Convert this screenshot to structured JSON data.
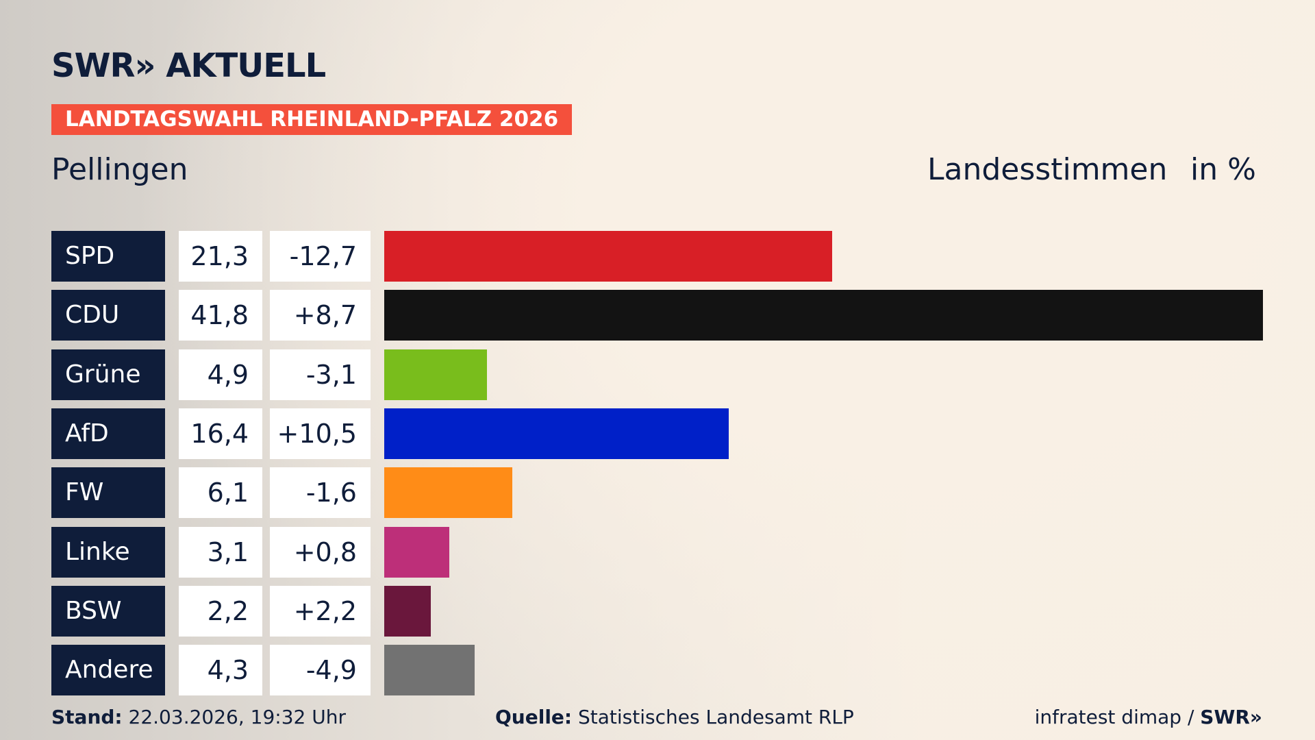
{
  "logo": "SWR» AKTUELL",
  "banner": "LANDTAGSWAHL RHEINLAND-PFALZ 2026",
  "place": "Pellingen",
  "vote_type": "Landesstimmen",
  "unit": "in %",
  "footer": {
    "stand_label": "Stand:",
    "stand_value": "22.03.2026, 19:32 Uhr",
    "source_label": "Quelle:",
    "source_value": "Statistisches Landesamt RLP",
    "credit": "infratest dimap / ",
    "credit_logo": "SWR»"
  },
  "chart_data": {
    "type": "bar",
    "orientation": "horizontal",
    "unit": "%",
    "categories": [
      "SPD",
      "CDU",
      "Grüne",
      "AfD",
      "FW",
      "Linke",
      "BSW",
      "Andere"
    ],
    "values": [
      21.3,
      41.8,
      4.9,
      16.4,
      6.1,
      3.1,
      2.2,
      4.3
    ],
    "value_labels": [
      "21,3",
      "41,8",
      "4,9",
      "16,4",
      "6,1",
      "3,1",
      "2,2",
      "4,3"
    ],
    "changes": [
      "-12,7",
      "+8,7",
      "-3,1",
      "+10,5",
      "-1,6",
      "+0,8",
      "+2,2",
      "-4,9"
    ],
    "colors": [
      "#d81f26",
      "#131313",
      "#79bd1c",
      "#0020c8",
      "#ff8c17",
      "#bd2f79",
      "#6a173c",
      "#727272"
    ]
  }
}
